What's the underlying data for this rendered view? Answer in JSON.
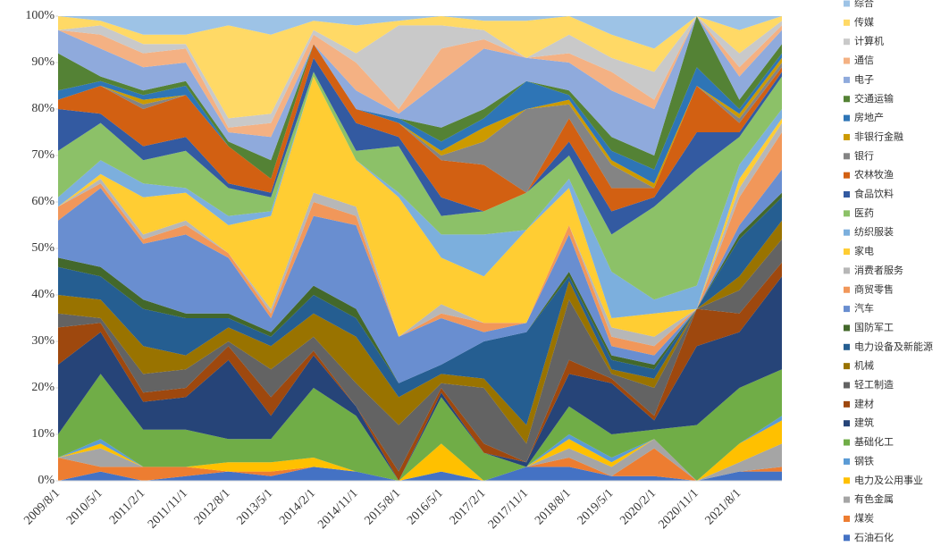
{
  "chart_data": {
    "type": "stacked_area",
    "categories": [
      "2009/8/1",
      "2010/5/1",
      "2011/2/1",
      "2011/11/1",
      "2012/8/1",
      "2013/5/1",
      "2014/2/1",
      "2014/11/1",
      "2015/8/1",
      "2016/5/1",
      "2017/2/1",
      "2017/11/1",
      "2018/8/1",
      "2019/5/1",
      "2020/2/1",
      "2020/11/1",
      "2021/8/1",
      null
    ],
    "ylim": [
      0,
      100
    ],
    "yticks": [
      {
        "value": 0,
        "label": "0%"
      },
      {
        "value": 10,
        "label": "10%"
      },
      {
        "value": 20,
        "label": "20%"
      },
      {
        "value": 30,
        "label": "30%"
      },
      {
        "value": 40,
        "label": "40%"
      },
      {
        "value": 50,
        "label": "50%"
      },
      {
        "value": 60,
        "label": "60%"
      },
      {
        "value": 70,
        "label": "70%"
      },
      {
        "value": 80,
        "label": "80%"
      },
      {
        "value": 90,
        "label": "90%"
      },
      {
        "value": 100,
        "label": "100%"
      }
    ],
    "legend": "right",
    "series": [
      {
        "name": "石油石化",
        "color": "#4472c4",
        "values": [
          0,
          2,
          0,
          1,
          2,
          1,
          3,
          2,
          0,
          2,
          0,
          3,
          3,
          1,
          1,
          0,
          2,
          2
        ]
      },
      {
        "name": "煤炭",
        "color": "#ed7d31",
        "values": [
          5,
          1,
          3,
          2,
          0,
          1,
          0,
          0,
          0,
          0,
          0,
          0,
          2,
          0,
          6,
          0,
          0,
          1
        ]
      },
      {
        "name": "有色金属",
        "color": "#a5a5a5",
        "values": [
          0,
          4,
          0,
          0,
          0,
          0,
          0,
          0,
          0,
          0,
          0,
          0,
          2,
          2,
          2,
          0,
          2,
          5
        ]
      },
      {
        "name": "电力及公用事业",
        "color": "#ffc000",
        "values": [
          0,
          1,
          0,
          0,
          2,
          2,
          2,
          0,
          0,
          6,
          0,
          0,
          2,
          1,
          0,
          0,
          4,
          5
        ]
      },
      {
        "name": "钢铁",
        "color": "#5b9bd5",
        "values": [
          0,
          1,
          0,
          0,
          0,
          0,
          0,
          0,
          0,
          0,
          0,
          0,
          1,
          1,
          0,
          0,
          0,
          1
        ]
      },
      {
        "name": "基础化工",
        "color": "#70ad47",
        "values": [
          5,
          14,
          8,
          8,
          5,
          5,
          15,
          12,
          0,
          10,
          6,
          0,
          6,
          5,
          2,
          12,
          12,
          10
        ]
      },
      {
        "name": "建筑",
        "color": "#264478",
        "values": [
          15,
          9,
          6,
          7,
          17,
          5,
          7,
          2,
          0,
          1,
          0,
          1,
          7,
          11,
          2,
          17,
          12,
          20
        ]
      },
      {
        "name": "建材",
        "color": "#9e480e",
        "values": [
          8,
          2,
          2,
          2,
          3,
          4,
          1,
          0,
          2,
          1,
          2,
          0,
          3,
          1,
          1,
          8,
          4,
          3
        ]
      },
      {
        "name": "轻工制造",
        "color": "#636363",
        "values": [
          3,
          1,
          4,
          4,
          1,
          6,
          3,
          5,
          10,
          1,
          12,
          4,
          13,
          1,
          6,
          0,
          5,
          5
        ]
      },
      {
        "name": "机械",
        "color": "#997300",
        "values": [
          4,
          4,
          6,
          3,
          3,
          5,
          5,
          10,
          6,
          2,
          2,
          4,
          4,
          1,
          2,
          0,
          3,
          4
        ]
      },
      {
        "name": "电力设备及新能源",
        "color": "#255e91",
        "values": [
          6,
          5,
          8,
          8,
          2,
          2,
          4,
          4,
          3,
          2,
          8,
          20,
          1,
          2,
          2,
          0,
          8,
          5
        ]
      },
      {
        "name": "国防军工",
        "color": "#43682b",
        "values": [
          2,
          2,
          2,
          1,
          1,
          1,
          2,
          2,
          0,
          0,
          0,
          0,
          1,
          1,
          1,
          0,
          1,
          1
        ]
      },
      {
        "name": "汽车",
        "color": "#698ed0",
        "values": [
          8,
          17,
          12,
          17,
          12,
          3,
          15,
          18,
          10,
          10,
          2,
          2,
          8,
          2,
          2,
          0,
          2,
          5
        ]
      },
      {
        "name": "商贸零售",
        "color": "#f1975a",
        "values": [
          3,
          1,
          1,
          2,
          1,
          1,
          3,
          2,
          0,
          1,
          2,
          0,
          2,
          2,
          2,
          0,
          6,
          8
        ]
      },
      {
        "name": "消费者服务",
        "color": "#b7b7b7",
        "values": [
          0,
          1,
          1,
          1,
          0,
          1,
          2,
          2,
          0,
          2,
          0,
          0,
          0,
          2,
          2,
          0,
          2,
          2
        ]
      },
      {
        "name": "家电",
        "color": "#ffcd33",
        "values": [
          0,
          1,
          8,
          6,
          6,
          20,
          25,
          10,
          30,
          10,
          10,
          20,
          8,
          2,
          5,
          0,
          2,
          1
        ]
      },
      {
        "name": "纺织服装",
        "color": "#7cafdd",
        "values": [
          2,
          3,
          3,
          1,
          2,
          1,
          0,
          0,
          1,
          5,
          9,
          0,
          2,
          10,
          3,
          5,
          3,
          2
        ]
      },
      {
        "name": "医药",
        "color": "#8cc168",
        "values": [
          10,
          8,
          5,
          8,
          6,
          3,
          1,
          2,
          10,
          4,
          5,
          8,
          5,
          8,
          20,
          25,
          6,
          7
        ]
      },
      {
        "name": "食品饮料",
        "color": "#335aa1",
        "values": [
          9,
          2,
          3,
          3,
          1,
          1,
          3,
          6,
          2,
          4,
          0,
          0,
          3,
          5,
          2,
          8,
          1,
          1
        ]
      },
      {
        "name": "农林牧渔",
        "color": "#d26012",
        "values": [
          2,
          6,
          8,
          9,
          8,
          3,
          3,
          3,
          3,
          8,
          10,
          0,
          5,
          5,
          2,
          10,
          2,
          1
        ]
      },
      {
        "name": "银行",
        "color": "#848484",
        "values": [
          0,
          0,
          1,
          0,
          0,
          0,
          0,
          0,
          0,
          1,
          5,
          18,
          3,
          5,
          0,
          0,
          1,
          1
        ]
      },
      {
        "name": "非银行金融",
        "color": "#cc9a00",
        "values": [
          0,
          0,
          1,
          0,
          0,
          0,
          0,
          0,
          0,
          1,
          3,
          0,
          1,
          1,
          1,
          0,
          1,
          1
        ]
      },
      {
        "name": "房地产",
        "color": "#2e75b6",
        "values": [
          2,
          1,
          1,
          2,
          0,
          0,
          0,
          0,
          1,
          2,
          2,
          6,
          1,
          2,
          3,
          4,
          1,
          1
        ]
      },
      {
        "name": "交通运输",
        "color": "#548235",
        "values": [
          8,
          1,
          1,
          1,
          1,
          4,
          0,
          0,
          0,
          3,
          2,
          0,
          1,
          3,
          3,
          11,
          2,
          2
        ]
      },
      {
        "name": "电子",
        "color": "#8faadc",
        "values": [
          5,
          6,
          5,
          4,
          2,
          5,
          0,
          4,
          1,
          10,
          13,
          5,
          6,
          10,
          10,
          0,
          5,
          3
        ]
      },
      {
        "name": "通信",
        "color": "#f4b183",
        "values": [
          0,
          3,
          3,
          3,
          1,
          3,
          2,
          6,
          1,
          7,
          2,
          0,
          2,
          4,
          2,
          0,
          2,
          1
        ]
      },
      {
        "name": "计算机",
        "color": "#c9c9c9",
        "values": [
          0,
          2,
          2,
          1,
          2,
          2,
          1,
          2,
          18,
          5,
          2,
          0,
          4,
          3,
          6,
          0,
          3,
          1
        ]
      },
      {
        "name": "传媒",
        "color": "#ffd966",
        "values": [
          3,
          1,
          2,
          2,
          20,
          17,
          2,
          6,
          1,
          2,
          2,
          8,
          4,
          5,
          5,
          0,
          5,
          1
        ]
      },
      {
        "name": "综合",
        "color": "#9dc3e6",
        "values": [
          0,
          1,
          4,
          4,
          2,
          4,
          1,
          2,
          1,
          0,
          1,
          1,
          0,
          4,
          7,
          0,
          3,
          0
        ]
      }
    ]
  }
}
